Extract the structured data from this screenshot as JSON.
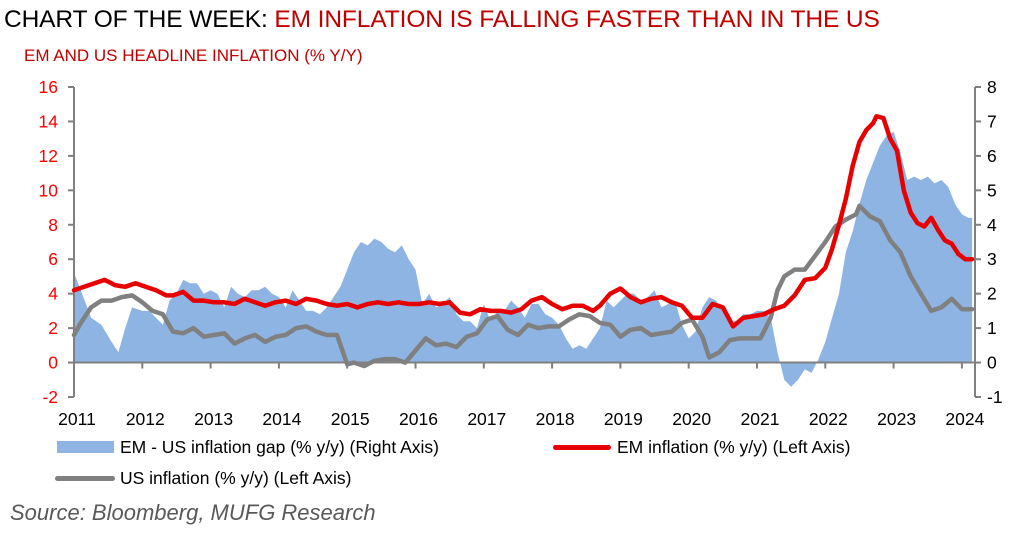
{
  "header": {
    "title_prefix": "CHART OF THE WEEK: ",
    "title_highlight": "EM INFLATION IS FALLING FASTER THAN IN THE US",
    "subtitle": "EM AND US HEADLINE INFLATION (% Y/Y)"
  },
  "source": "Source: Bloomberg, MUFG Research",
  "colors": {
    "em": "#e60000",
    "us": "#808080",
    "gap": "#8db4e2",
    "axis": "#808080",
    "left_tick": "#ff0000"
  },
  "chart_data": {
    "type": "line",
    "title": "EM AND US HEADLINE INFLATION (% Y/Y)",
    "xlabel": "",
    "ylabel": "",
    "x_ticks": [
      "2011",
      "2012",
      "2013",
      "2014",
      "2015",
      "2016",
      "2017",
      "2018",
      "2019",
      "2020",
      "2021",
      "2022",
      "2023",
      "2024"
    ],
    "xlim": [
      2011.0,
      2024.15
    ],
    "left_axis": {
      "ylim": [
        -2,
        16
      ],
      "ticks": [
        "16",
        "14",
        "12",
        "10",
        "8",
        "6",
        "4",
        "2",
        "0",
        "-2"
      ]
    },
    "right_axis": {
      "ylim": [
        -1,
        8
      ],
      "ticks": [
        "8",
        "7",
        "6",
        "5",
        "4",
        "3",
        "2",
        "1",
        "0",
        "-1"
      ]
    },
    "legend": [
      "EM - US inflation gap (% y/y) (Right Axis)",
      "EM inflation (% y/y) (Left Axis)",
      "US inflation (% y/y) (Left Axis)"
    ],
    "legend_position": "bottom",
    "series": [
      {
        "name": "EM - US inflation gap (% y/y) (Right Axis)",
        "type": "area",
        "axis": "right",
        "x": [
          2011.0,
          2011.1,
          2011.25,
          2011.4,
          2011.55,
          2011.65,
          2011.75,
          2011.85,
          2012.0,
          2012.1,
          2012.2,
          2012.3,
          2012.4,
          2012.5,
          2012.6,
          2012.7,
          2012.8,
          2012.9,
          2013.0,
          2013.1,
          2013.2,
          2013.3,
          2013.4,
          2013.5,
          2013.6,
          2013.7,
          2013.8,
          2013.9,
          2014.0,
          2014.1,
          2014.2,
          2014.3,
          2014.4,
          2014.5,
          2014.6,
          2014.7,
          2014.8,
          2014.9,
          2015.0,
          2015.1,
          2015.2,
          2015.3,
          2015.4,
          2015.5,
          2015.6,
          2015.7,
          2015.8,
          2015.9,
          2016.0,
          2016.1,
          2016.2,
          2016.3,
          2016.4,
          2016.5,
          2016.6,
          2016.7,
          2016.8,
          2016.9,
          2017.0,
          2017.1,
          2017.2,
          2017.3,
          2017.4,
          2017.5,
          2017.6,
          2017.7,
          2017.8,
          2017.9,
          2018.0,
          2018.1,
          2018.2,
          2018.3,
          2018.4,
          2018.5,
          2018.6,
          2018.7,
          2018.8,
          2018.9,
          2019.0,
          2019.1,
          2019.2,
          2019.3,
          2019.4,
          2019.5,
          2019.6,
          2019.7,
          2019.8,
          2019.9,
          2020.0,
          2020.1,
          2020.2,
          2020.3,
          2020.4,
          2020.5,
          2020.6,
          2020.7,
          2020.8,
          2020.9,
          2021.0,
          2021.1,
          2021.2,
          2021.3,
          2021.4,
          2021.5,
          2021.6,
          2021.7,
          2021.8,
          2021.9,
          2022.0,
          2022.1,
          2022.2,
          2022.3,
          2022.4,
          2022.5,
          2022.6,
          2022.7,
          2022.8,
          2022.9,
          2023.0,
          2023.1,
          2023.2,
          2023.3,
          2023.4,
          2023.5,
          2023.6,
          2023.7,
          2023.8,
          2023.9,
          2024.0,
          2024.1,
          2024.15
        ],
        "values": [
          2.6,
          2.1,
          1.3,
          1.1,
          0.6,
          0.3,
          1.0,
          1.6,
          1.5,
          1.5,
          1.3,
          1.1,
          1.8,
          2.0,
          2.4,
          2.3,
          2.3,
          2.0,
          2.1,
          2.0,
          1.6,
          2.2,
          2.0,
          1.9,
          2.1,
          2.1,
          2.2,
          2.0,
          1.9,
          1.6,
          2.1,
          1.8,
          1.5,
          1.5,
          1.4,
          1.6,
          1.9,
          2.2,
          2.7,
          3.2,
          3.5,
          3.4,
          3.6,
          3.5,
          3.3,
          3.2,
          3.4,
          3.0,
          2.7,
          1.7,
          2.0,
          1.6,
          1.7,
          1.9,
          1.4,
          1.2,
          1.2,
          1.0,
          1.7,
          1.2,
          1.5,
          1.5,
          1.8,
          1.6,
          1.3,
          1.7,
          1.7,
          1.4,
          1.3,
          1.1,
          0.7,
          0.4,
          0.5,
          0.4,
          0.7,
          1.0,
          1.8,
          1.6,
          1.8,
          2.0,
          2.0,
          1.8,
          1.9,
          2.1,
          1.6,
          1.7,
          1.8,
          1.1,
          0.7,
          0.9,
          1.6,
          1.9,
          1.8,
          1.5,
          1.2,
          1.2,
          1.4,
          1.4,
          1.5,
          1.5,
          1.3,
          0.3,
          -0.5,
          -0.7,
          -0.5,
          -0.2,
          -0.3,
          0.1,
          0.6,
          1.3,
          2.0,
          3.2,
          3.8,
          4.6,
          5.3,
          5.8,
          6.3,
          6.6,
          6.7,
          6.1,
          5.3,
          5.4,
          5.3,
          5.4,
          5.2,
          5.3,
          5.1,
          4.6,
          4.3,
          4.2,
          4.2
        ]
      },
      {
        "name": "EM inflation (% y/y) (Left Axis)",
        "type": "line",
        "axis": "left",
        "x": [
          2011.0,
          2011.15,
          2011.3,
          2011.45,
          2011.6,
          2011.75,
          2011.9,
          2012.05,
          2012.2,
          2012.35,
          2012.45,
          2012.6,
          2012.75,
          2012.9,
          2013.05,
          2013.2,
          2013.35,
          2013.5,
          2013.65,
          2013.8,
          2013.95,
          2014.1,
          2014.25,
          2014.4,
          2014.55,
          2014.7,
          2014.85,
          2015.0,
          2015.15,
          2015.3,
          2015.45,
          2015.6,
          2015.75,
          2015.9,
          2016.05,
          2016.2,
          2016.35,
          2016.5,
          2016.65,
          2016.8,
          2016.95,
          2017.1,
          2017.25,
          2017.4,
          2017.55,
          2017.7,
          2017.85,
          2018.0,
          2018.15,
          2018.3,
          2018.45,
          2018.6,
          2018.7,
          2018.85,
          2019.0,
          2019.15,
          2019.3,
          2019.45,
          2019.6,
          2019.75,
          2019.9,
          2020.05,
          2020.2,
          2020.35,
          2020.5,
          2020.65,
          2020.8,
          2020.95,
          2021.1,
          2021.25,
          2021.4,
          2021.55,
          2021.7,
          2021.85,
          2022.0,
          2022.1,
          2022.2,
          2022.3,
          2022.4,
          2022.5,
          2022.6,
          2022.7,
          2022.75,
          2022.85,
          2022.95,
          2023.05,
          2023.15,
          2023.25,
          2023.35,
          2023.45,
          2023.55,
          2023.65,
          2023.75,
          2023.85,
          2023.95,
          2024.05,
          2024.15
        ],
        "values": [
          4.2,
          4.4,
          4.6,
          4.8,
          4.5,
          4.4,
          4.6,
          4.4,
          4.2,
          3.9,
          3.9,
          4.1,
          3.6,
          3.6,
          3.5,
          3.5,
          3.4,
          3.7,
          3.5,
          3.3,
          3.5,
          3.6,
          3.4,
          3.7,
          3.6,
          3.4,
          3.3,
          3.4,
          3.2,
          3.4,
          3.5,
          3.4,
          3.5,
          3.4,
          3.4,
          3.5,
          3.4,
          3.5,
          2.9,
          2.8,
          3.1,
          3.0,
          3.0,
          2.9,
          3.1,
          3.6,
          3.8,
          3.4,
          3.1,
          3.3,
          3.3,
          3.0,
          3.3,
          4.0,
          4.3,
          3.8,
          3.5,
          3.7,
          3.8,
          3.5,
          3.3,
          2.6,
          2.6,
          3.4,
          3.2,
          2.1,
          2.6,
          2.7,
          2.8,
          3.1,
          3.3,
          3.9,
          4.8,
          4.9,
          5.5,
          6.6,
          8.0,
          9.5,
          11.4,
          12.8,
          13.5,
          13.9,
          14.3,
          14.2,
          13.0,
          12.3,
          10.0,
          8.7,
          8.1,
          7.9,
          8.4,
          7.7,
          7.1,
          6.9,
          6.3,
          6.0,
          6.0
        ]
      },
      {
        "name": "US inflation (% y/y) (Left Axis)",
        "type": "line",
        "axis": "left",
        "x": [
          2011.0,
          2011.1,
          2011.25,
          2011.4,
          2011.55,
          2011.7,
          2011.85,
          2012.0,
          2012.15,
          2012.3,
          2012.45,
          2012.6,
          2012.75,
          2012.9,
          2013.05,
          2013.2,
          2013.35,
          2013.5,
          2013.65,
          2013.8,
          2013.95,
          2014.1,
          2014.25,
          2014.4,
          2014.55,
          2014.7,
          2014.85,
          2015.0,
          2015.1,
          2015.25,
          2015.4,
          2015.55,
          2015.7,
          2015.85,
          2016.0,
          2016.15,
          2016.3,
          2016.45,
          2016.6,
          2016.75,
          2016.9,
          2017.05,
          2017.2,
          2017.35,
          2017.5,
          2017.65,
          2017.8,
          2017.95,
          2018.1,
          2018.25,
          2018.4,
          2018.55,
          2018.7,
          2018.85,
          2019.0,
          2019.15,
          2019.3,
          2019.45,
          2019.6,
          2019.75,
          2019.9,
          2020.05,
          2020.2,
          2020.3,
          2020.45,
          2020.6,
          2020.75,
          2020.9,
          2021.05,
          2021.2,
          2021.3,
          2021.4,
          2021.55,
          2021.7,
          2021.85,
          2022.0,
          2022.15,
          2022.3,
          2022.45,
          2022.5,
          2022.65,
          2022.8,
          2022.95,
          2023.1,
          2023.25,
          2023.4,
          2023.55,
          2023.7,
          2023.85,
          2024.0,
          2024.15
        ],
        "values": [
          1.6,
          2.3,
          3.2,
          3.6,
          3.6,
          3.8,
          3.9,
          3.5,
          3.0,
          2.8,
          1.8,
          1.7,
          2.0,
          1.5,
          1.6,
          1.7,
          1.1,
          1.4,
          1.6,
          1.2,
          1.5,
          1.6,
          2.0,
          2.1,
          1.8,
          1.6,
          1.6,
          -0.1,
          0.0,
          -0.2,
          0.1,
          0.2,
          0.2,
          0.0,
          0.7,
          1.4,
          1.0,
          1.1,
          0.9,
          1.5,
          1.7,
          2.5,
          2.7,
          1.9,
          1.6,
          2.2,
          2.0,
          2.1,
          2.1,
          2.5,
          2.8,
          2.7,
          2.3,
          2.2,
          1.5,
          1.9,
          2.0,
          1.6,
          1.7,
          1.8,
          2.3,
          2.5,
          1.5,
          0.3,
          0.6,
          1.3,
          1.4,
          1.4,
          1.4,
          2.6,
          4.2,
          5.0,
          5.4,
          5.4,
          6.2,
          7.0,
          7.9,
          8.3,
          8.6,
          9.1,
          8.5,
          8.2,
          7.1,
          6.4,
          5.0,
          4.0,
          3.0,
          3.2,
          3.7,
          3.1,
          3.1
        ]
      }
    ]
  }
}
